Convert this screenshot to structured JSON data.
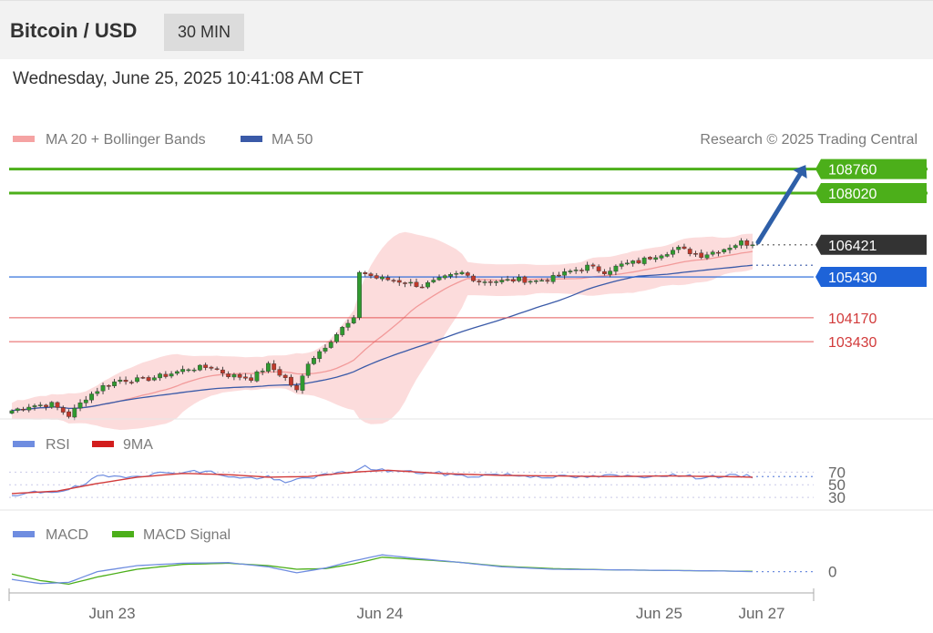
{
  "header": {
    "title": "Bitcoin / USD",
    "interval": "30 MIN"
  },
  "timestamp": "Wednesday, June 25, 2025 10:41:08 AM CET",
  "chart_data": {
    "type": "candlestick",
    "legend": {
      "ma20_bollinger": "MA 20 + Bollinger Bands",
      "ma50": "MA 50",
      "credit": "Research © 2025 Trading Central"
    },
    "colors": {
      "up": "#2f9a2f",
      "down": "#c0392b",
      "bollinger": "#fcd6d6",
      "ma20": "#f29a9a",
      "ma50": "#3a5aa8",
      "resistance": "#4caf1a",
      "support": "#e55a5a",
      "pivot": "#1e63d8",
      "last": "#333333",
      "rsi": "#6f8de0",
      "rsi_ma": "#d23b3b",
      "macd": "#6f8de0",
      "macd_signal": "#4caf1a"
    },
    "price_range": [
      101100,
      109200
    ],
    "levels": {
      "resistance": [
        {
          "label": "108760",
          "value": 108760
        },
        {
          "label": "108020",
          "value": 108020
        }
      ],
      "last": {
        "label": "106421",
        "value": 106421
      },
      "pivot": {
        "label": "105430",
        "value": 105430
      },
      "support": [
        {
          "label": "104170",
          "value": 104170
        },
        {
          "label": "103430",
          "value": 103430
        }
      ]
    },
    "target_arrow": {
      "from_index": 130,
      "from_value": 106500,
      "to_value": 108600
    },
    "x_labels": [
      {
        "label": "Jun 23",
        "index": 16
      },
      {
        "label": "Jun 24",
        "index": 63
      },
      {
        "label": "Jun 25",
        "index": 112
      },
      {
        "label": "Jun 27",
        "index": 130
      }
    ],
    "candle_anchors": [
      [
        0,
        101300
      ],
      [
        3,
        101450
      ],
      [
        7,
        101500
      ],
      [
        10,
        101150
      ],
      [
        13,
        101700
      ],
      [
        16,
        102050
      ],
      [
        19,
        102250
      ],
      [
        23,
        102250
      ],
      [
        27,
        102400
      ],
      [
        31,
        102600
      ],
      [
        35,
        102650
      ],
      [
        38,
        102400
      ],
      [
        42,
        102300
      ],
      [
        45,
        102700
      ],
      [
        48,
        102300
      ],
      [
        50,
        101900
      ],
      [
        52,
        102800
      ],
      [
        55,
        103300
      ],
      [
        58,
        103850
      ],
      [
        60,
        104100
      ],
      [
        61,
        105600
      ],
      [
        64,
        105400
      ],
      [
        68,
        105300
      ],
      [
        72,
        105150
      ],
      [
        76,
        105400
      ],
      [
        79,
        105550
      ],
      [
        82,
        105300
      ],
      [
        86,
        105300
      ],
      [
        89,
        105350
      ],
      [
        92,
        105300
      ],
      [
        95,
        105400
      ],
      [
        98,
        105600
      ],
      [
        101,
        105750
      ],
      [
        104,
        105600
      ],
      [
        107,
        105800
      ],
      [
        110,
        105900
      ],
      [
        113,
        106100
      ],
      [
        117,
        106300
      ],
      [
        121,
        106100
      ],
      [
        125,
        106300
      ],
      [
        128,
        106500
      ],
      [
        130,
        106421
      ]
    ],
    "rsi": {
      "legend": "RSI",
      "ma_legend": "9MA",
      "levels": [
        {
          "label": "70",
          "value": 70
        },
        {
          "label": "50",
          "value": 50
        },
        {
          "label": "30",
          "value": 30
        }
      ],
      "anchors": [
        [
          0,
          30
        ],
        [
          4,
          38
        ],
        [
          8,
          40
        ],
        [
          12,
          47
        ],
        [
          15,
          62
        ],
        [
          20,
          64
        ],
        [
          25,
          67
        ],
        [
          30,
          71
        ],
        [
          35,
          70
        ],
        [
          40,
          60
        ],
        [
          45,
          62
        ],
        [
          48,
          52
        ],
        [
          51,
          61
        ],
        [
          55,
          65
        ],
        [
          59,
          70
        ],
        [
          62,
          78
        ],
        [
          65,
          73
        ],
        [
          70,
          70
        ],
        [
          75,
          68
        ],
        [
          80,
          63
        ],
        [
          85,
          67
        ],
        [
          90,
          64
        ],
        [
          95,
          63
        ],
        [
          100,
          62
        ],
        [
          105,
          64
        ],
        [
          110,
          63
        ],
        [
          115,
          66
        ],
        [
          120,
          62
        ],
        [
          125,
          64
        ],
        [
          130,
          63
        ]
      ],
      "ma_anchors": [
        [
          0,
          36
        ],
        [
          8,
          40
        ],
        [
          15,
          52
        ],
        [
          22,
          62
        ],
        [
          30,
          68
        ],
        [
          38,
          66
        ],
        [
          45,
          62
        ],
        [
          52,
          63
        ],
        [
          60,
          70
        ],
        [
          66,
          73
        ],
        [
          75,
          68
        ],
        [
          85,
          65
        ],
        [
          95,
          64
        ],
        [
          105,
          63
        ],
        [
          115,
          64
        ],
        [
          125,
          63
        ],
        [
          130,
          62
        ]
      ]
    },
    "macd": {
      "legend": "MACD",
      "signal_legend": "MACD Signal",
      "zero_label": "0",
      "anchors": [
        [
          0,
          -0.5
        ],
        [
          5,
          -1.2
        ],
        [
          10,
          -1.0
        ],
        [
          15,
          0.8
        ],
        [
          22,
          1.8
        ],
        [
          30,
          2.2
        ],
        [
          38,
          2.3
        ],
        [
          45,
          1.6
        ],
        [
          50,
          0.6
        ],
        [
          55,
          1.4
        ],
        [
          60,
          2.6
        ],
        [
          65,
          3.6
        ],
        [
          70,
          3.1
        ],
        [
          78,
          2.4
        ],
        [
          86,
          1.6
        ],
        [
          95,
          1.2
        ],
        [
          105,
          1.1
        ],
        [
          115,
          1.0
        ],
        [
          125,
          0.9
        ],
        [
          130,
          0.8
        ]
      ],
      "signal_anchors": [
        [
          0,
          0.4
        ],
        [
          5,
          -0.7
        ],
        [
          10,
          -1.3
        ],
        [
          15,
          -0.1
        ],
        [
          22,
          1.2
        ],
        [
          30,
          2.0
        ],
        [
          38,
          2.2
        ],
        [
          45,
          1.8
        ],
        [
          50,
          1.2
        ],
        [
          55,
          1.3
        ],
        [
          60,
          2.1
        ],
        [
          65,
          3.2
        ],
        [
          70,
          2.9
        ],
        [
          78,
          2.4
        ],
        [
          86,
          1.7
        ],
        [
          95,
          1.3
        ],
        [
          105,
          1.1
        ],
        [
          115,
          1.0
        ],
        [
          125,
          0.9
        ],
        [
          130,
          0.85
        ]
      ],
      "range": [
        -2,
        5
      ]
    }
  }
}
